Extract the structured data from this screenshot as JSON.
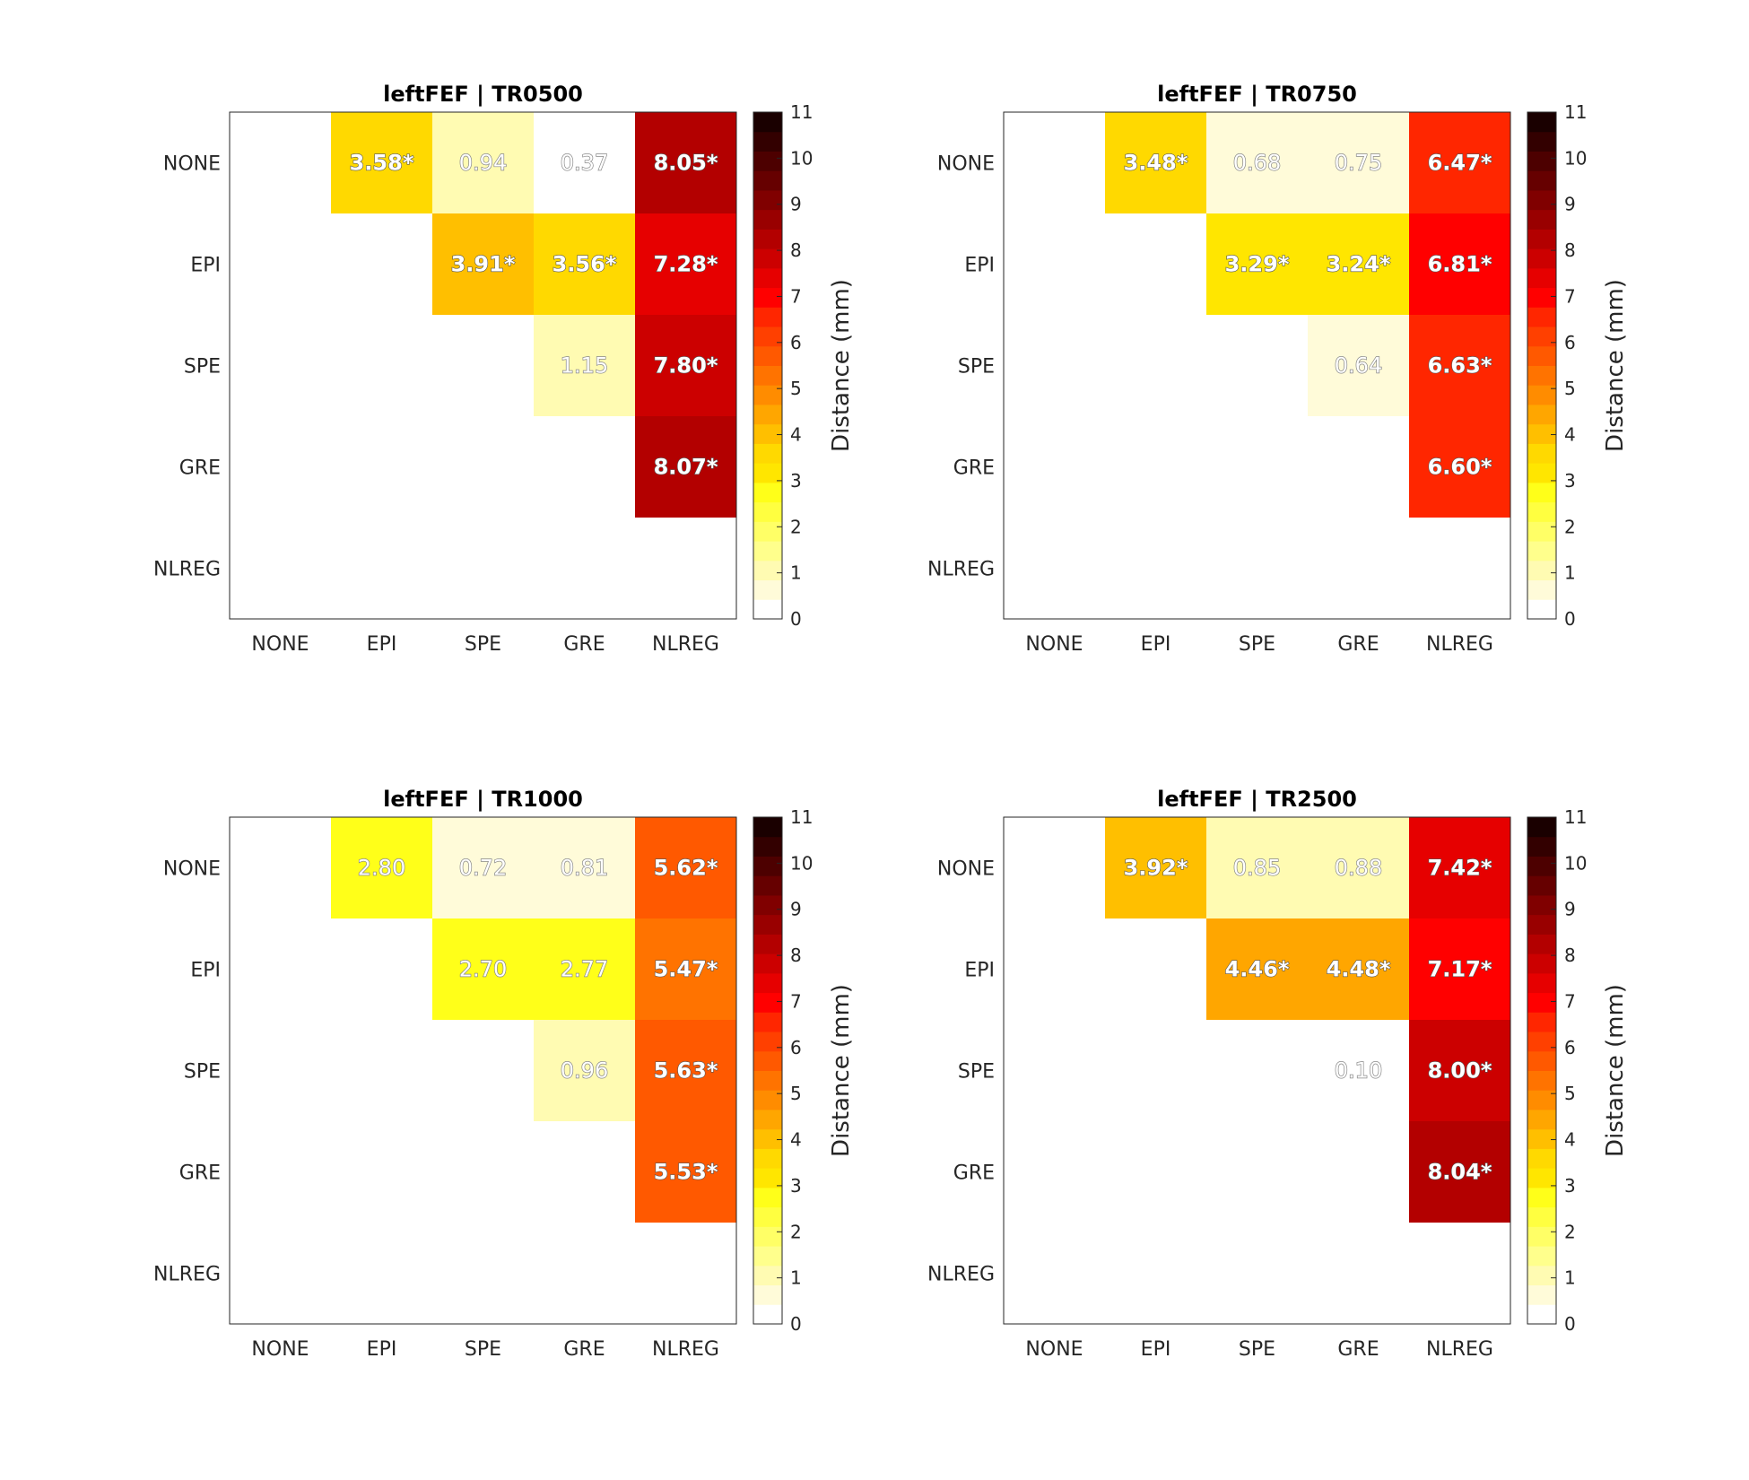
{
  "colorbar_label": "Distance (mm)",
  "colorbar_ticks": [
    "0",
    "1",
    "2",
    "3",
    "4",
    "5",
    "6",
    "7",
    "8",
    "9",
    "10",
    "11"
  ],
  "colormap": [
    "#ffffff",
    "#fffbd9",
    "#fffbb2",
    "#ffff8c",
    "#ffff66",
    "#ffff40",
    "#ffff19",
    "#ffe600",
    "#ffd900",
    "#ffbf00",
    "#ffa600",
    "#ff8c00",
    "#ff7300",
    "#ff5900",
    "#ff4000",
    "#ff2600",
    "#ff0000",
    "#e60000",
    "#cc0000",
    "#b30000",
    "#990000",
    "#800000",
    "#660000",
    "#4d0000",
    "#330000",
    "#1a0000"
  ],
  "chart_data": [
    {
      "type": "heatmap",
      "title": "leftFEF | TR0500",
      "x_categories": [
        "NONE",
        "EPI",
        "SPE",
        "GRE",
        "NLREG"
      ],
      "y_categories": [
        "NONE",
        "EPI",
        "SPE",
        "GRE",
        "NLREG"
      ],
      "clim": [
        0,
        11
      ],
      "cells": [
        {
          "row": 0,
          "col": 1,
          "value": 3.58,
          "label": "3.58*",
          "significant": true
        },
        {
          "row": 0,
          "col": 2,
          "value": 0.94,
          "label": "0.94",
          "significant": false
        },
        {
          "row": 0,
          "col": 3,
          "value": 0.37,
          "label": "0.37",
          "significant": false
        },
        {
          "row": 0,
          "col": 4,
          "value": 8.05,
          "label": "8.05*",
          "significant": true
        },
        {
          "row": 1,
          "col": 2,
          "value": 3.91,
          "label": "3.91*",
          "significant": true
        },
        {
          "row": 1,
          "col": 3,
          "value": 3.56,
          "label": "3.56*",
          "significant": true
        },
        {
          "row": 1,
          "col": 4,
          "value": 7.28,
          "label": "7.28*",
          "significant": true
        },
        {
          "row": 2,
          "col": 3,
          "value": 1.15,
          "label": "1.15",
          "significant": false
        },
        {
          "row": 2,
          "col": 4,
          "value": 7.8,
          "label": "7.80*",
          "significant": true
        },
        {
          "row": 3,
          "col": 4,
          "value": 8.07,
          "label": "8.07*",
          "significant": true
        }
      ]
    },
    {
      "type": "heatmap",
      "title": "leftFEF | TR0750",
      "x_categories": [
        "NONE",
        "EPI",
        "SPE",
        "GRE",
        "NLREG"
      ],
      "y_categories": [
        "NONE",
        "EPI",
        "SPE",
        "GRE",
        "NLREG"
      ],
      "clim": [
        0,
        11
      ],
      "cells": [
        {
          "row": 0,
          "col": 1,
          "value": 3.48,
          "label": "3.48*",
          "significant": true
        },
        {
          "row": 0,
          "col": 2,
          "value": 0.68,
          "label": "0.68",
          "significant": false
        },
        {
          "row": 0,
          "col": 3,
          "value": 0.75,
          "label": "0.75",
          "significant": false
        },
        {
          "row": 0,
          "col": 4,
          "value": 6.47,
          "label": "6.47*",
          "significant": true
        },
        {
          "row": 1,
          "col": 2,
          "value": 3.29,
          "label": "3.29*",
          "significant": true
        },
        {
          "row": 1,
          "col": 3,
          "value": 3.24,
          "label": "3.24*",
          "significant": true
        },
        {
          "row": 1,
          "col": 4,
          "value": 6.81,
          "label": "6.81*",
          "significant": true
        },
        {
          "row": 2,
          "col": 3,
          "value": 0.64,
          "label": "0.64",
          "significant": false
        },
        {
          "row": 2,
          "col": 4,
          "value": 6.63,
          "label": "6.63*",
          "significant": true
        },
        {
          "row": 3,
          "col": 4,
          "value": 6.6,
          "label": "6.60*",
          "significant": true
        }
      ]
    },
    {
      "type": "heatmap",
      "title": "leftFEF | TR1000",
      "x_categories": [
        "NONE",
        "EPI",
        "SPE",
        "GRE",
        "NLREG"
      ],
      "y_categories": [
        "NONE",
        "EPI",
        "SPE",
        "GRE",
        "NLREG"
      ],
      "clim": [
        0,
        11
      ],
      "cells": [
        {
          "row": 0,
          "col": 1,
          "value": 2.8,
          "label": "2.80",
          "significant": false
        },
        {
          "row": 0,
          "col": 2,
          "value": 0.72,
          "label": "0.72",
          "significant": false
        },
        {
          "row": 0,
          "col": 3,
          "value": 0.81,
          "label": "0.81",
          "significant": false
        },
        {
          "row": 0,
          "col": 4,
          "value": 5.62,
          "label": "5.62*",
          "significant": true
        },
        {
          "row": 1,
          "col": 2,
          "value": 2.7,
          "label": "2.70",
          "significant": false
        },
        {
          "row": 1,
          "col": 3,
          "value": 2.77,
          "label": "2.77",
          "significant": false
        },
        {
          "row": 1,
          "col": 4,
          "value": 5.47,
          "label": "5.47*",
          "significant": true
        },
        {
          "row": 2,
          "col": 3,
          "value": 0.96,
          "label": "0.96",
          "significant": false
        },
        {
          "row": 2,
          "col": 4,
          "value": 5.63,
          "label": "5.63*",
          "significant": true
        },
        {
          "row": 3,
          "col": 4,
          "value": 5.53,
          "label": "5.53*",
          "significant": true
        }
      ]
    },
    {
      "type": "heatmap",
      "title": "leftFEF | TR2500",
      "x_categories": [
        "NONE",
        "EPI",
        "SPE",
        "GRE",
        "NLREG"
      ],
      "y_categories": [
        "NONE",
        "EPI",
        "SPE",
        "GRE",
        "NLREG"
      ],
      "clim": [
        0,
        11
      ],
      "cells": [
        {
          "row": 0,
          "col": 1,
          "value": 3.92,
          "label": "3.92*",
          "significant": true
        },
        {
          "row": 0,
          "col": 2,
          "value": 0.85,
          "label": "0.85",
          "significant": false
        },
        {
          "row": 0,
          "col": 3,
          "value": 0.88,
          "label": "0.88",
          "significant": false
        },
        {
          "row": 0,
          "col": 4,
          "value": 7.42,
          "label": "7.42*",
          "significant": true
        },
        {
          "row": 1,
          "col": 2,
          "value": 4.46,
          "label": "4.46*",
          "significant": true
        },
        {
          "row": 1,
          "col": 3,
          "value": 4.48,
          "label": "4.48*",
          "significant": true
        },
        {
          "row": 1,
          "col": 4,
          "value": 7.17,
          "label": "7.17*",
          "significant": true
        },
        {
          "row": 2,
          "col": 3,
          "value": 0.1,
          "label": "0.10",
          "significant": false
        },
        {
          "row": 2,
          "col": 4,
          "value": 8.0,
          "label": "8.00*",
          "significant": true
        },
        {
          "row": 3,
          "col": 4,
          "value": 8.04,
          "label": "8.04*",
          "significant": true
        }
      ]
    }
  ]
}
